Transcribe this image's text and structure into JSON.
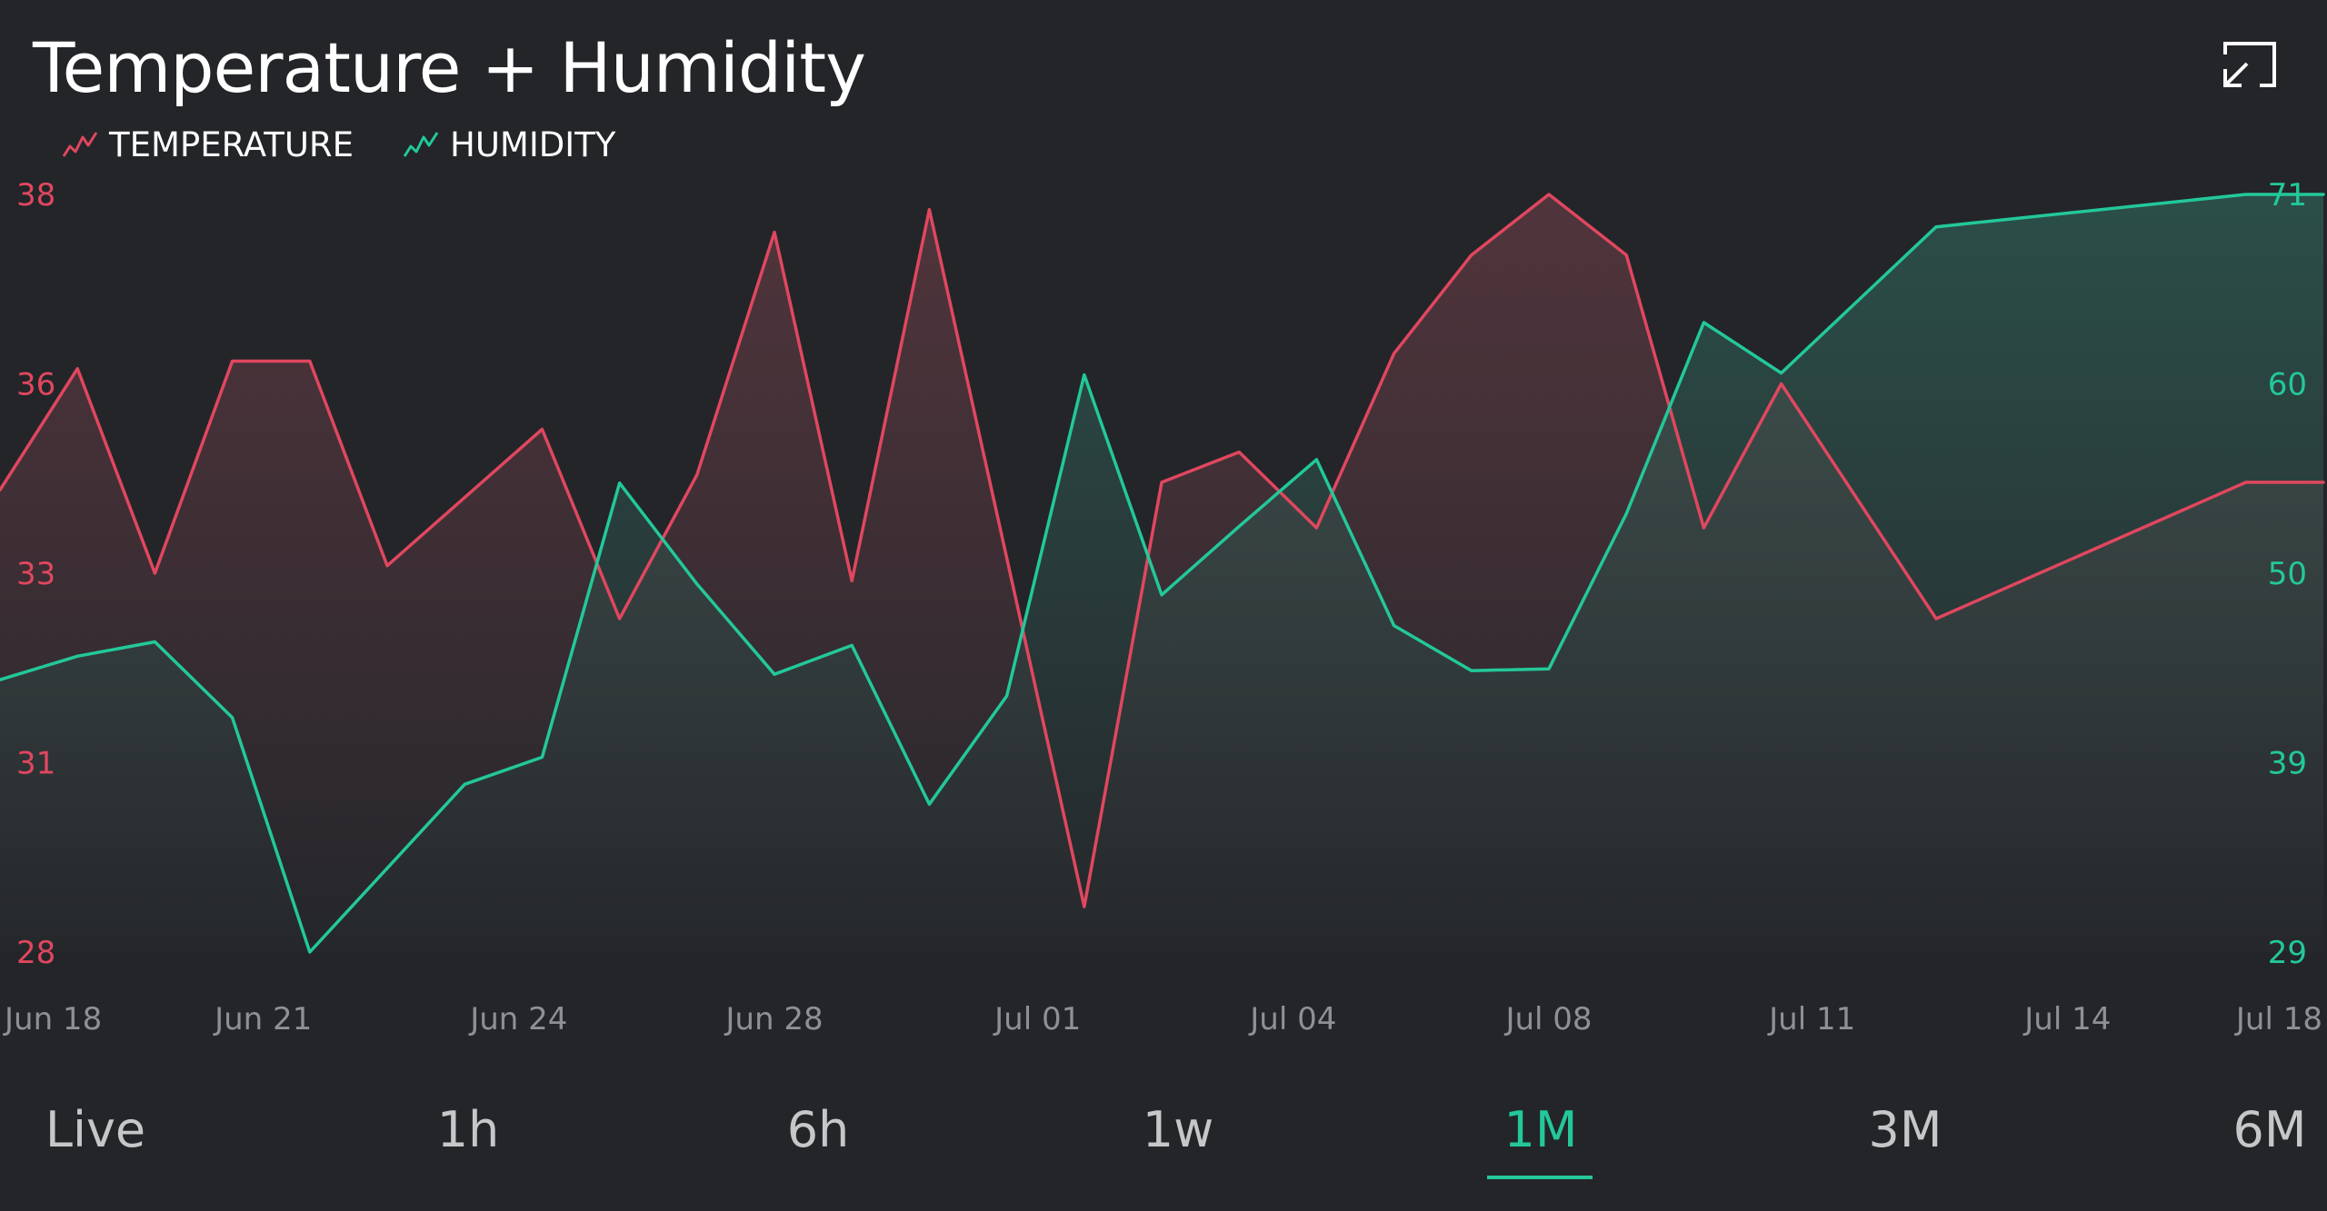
{
  "widget": {
    "title": "Temperature + Humidity"
  },
  "legend": [
    {
      "label": "TEMPERATURE",
      "color": "#e0475f",
      "icon": "line-chart-icon"
    },
    {
      "label": "HUMIDITY",
      "color": "#23c89a",
      "icon": "line-chart-icon"
    }
  ],
  "colors": {
    "background": "#232529",
    "temperature": "#e0475f",
    "humidity": "#23c89a",
    "axis_text": "#8f9094"
  },
  "tabs": [
    {
      "label": "Live",
      "active": false
    },
    {
      "label": "1h",
      "active": false
    },
    {
      "label": "6h",
      "active": false
    },
    {
      "label": "1w",
      "active": false
    },
    {
      "label": "1M",
      "active": true
    },
    {
      "label": "3M",
      "active": false
    },
    {
      "label": "6M",
      "active": false
    }
  ],
  "chart_data": {
    "type": "line",
    "title": "Temperature + Humidity",
    "x_ticks": [
      "Jun 18",
      "Jun 21",
      "Jun 24",
      "Jun 28",
      "Jul 01",
      "Jul 04",
      "Jul 08",
      "Jul 11",
      "Jul 14",
      "Jul 18"
    ],
    "x_tick_index": [
      0.7,
      3.4,
      6.7,
      10.0,
      13.4,
      16.7,
      20.0,
      23.4,
      26.7,
      30.0
    ],
    "x_range": [
      0,
      30
    ],
    "left_axis": {
      "ticks": [
        "38",
        "36",
        "33",
        "31",
        "28"
      ],
      "range": [
        28,
        38
      ],
      "color": "#e0475f"
    },
    "right_axis": {
      "ticks": [
        "71",
        "60",
        "50",
        "39",
        "29"
      ],
      "range": [
        29,
        71
      ],
      "color": "#23c89a"
    },
    "area_fill": true,
    "series": [
      {
        "name": "TEMPERATURE",
        "axis": "left",
        "color": "#e0475f",
        "x": [
          0,
          1,
          2,
          3,
          4,
          5,
          7,
          8,
          9,
          10,
          11,
          12,
          14,
          15,
          16,
          17,
          18,
          19,
          20,
          21,
          22,
          23,
          25,
          29,
          30
        ],
        "values": [
          34.1,
          35.7,
          33.0,
          35.8,
          35.8,
          33.1,
          34.9,
          32.4,
          34.3,
          37.5,
          32.9,
          37.8,
          28.6,
          34.2,
          34.6,
          33.6,
          35.9,
          37.2,
          38.0,
          37.2,
          33.6,
          35.5,
          32.4,
          34.2,
          34.2
        ]
      },
      {
        "name": "HUMIDITY",
        "axis": "right",
        "color": "#23c89a",
        "x": [
          0,
          1,
          2,
          3,
          4,
          6,
          7,
          8,
          9,
          10,
          11,
          12,
          13,
          14,
          15,
          16,
          17,
          18,
          19,
          20,
          21,
          22,
          23,
          25,
          29,
          30
        ],
        "values": [
          44.1,
          45.4,
          46.2,
          42.0,
          29.0,
          38.3,
          39.8,
          55.0,
          49.4,
          44.4,
          46.0,
          37.2,
          43.2,
          61.0,
          48.8,
          52.6,
          56.3,
          47.1,
          44.6,
          44.7,
          53.3,
          63.9,
          61.1,
          69.2,
          71.0,
          71.0
        ]
      }
    ]
  }
}
